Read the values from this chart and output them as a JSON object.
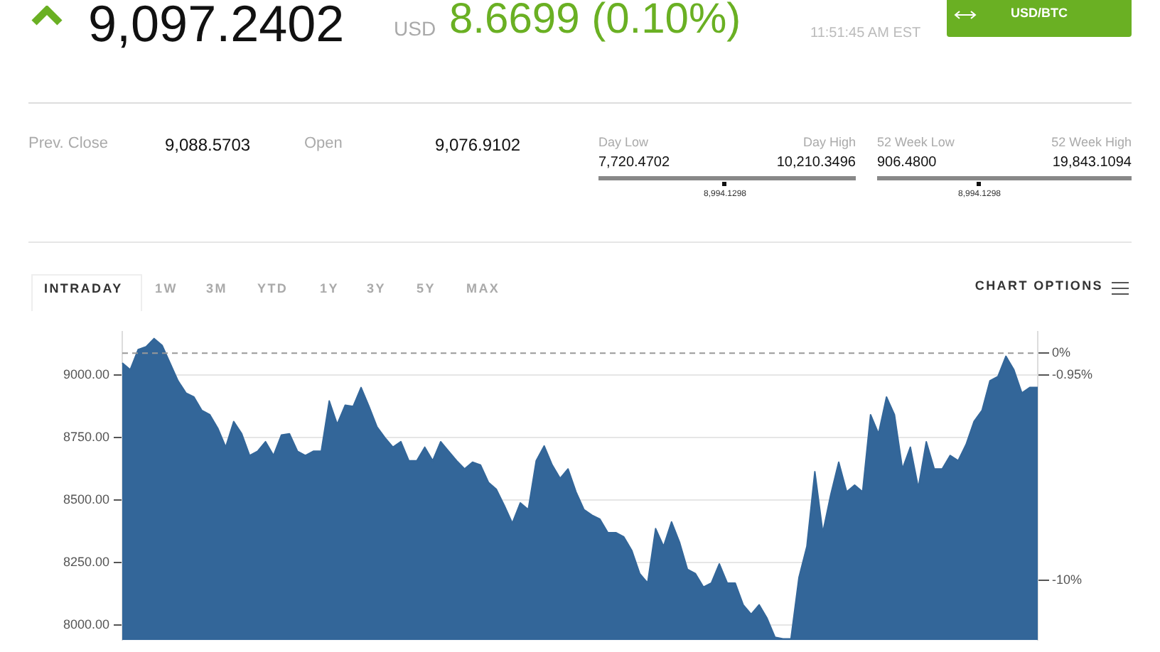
{
  "chart_data": {
    "type": "area",
    "categories": [
      null,
      null,
      null,
      null,
      null,
      null,
      null,
      null,
      null,
      null,
      null,
      null,
      null,
      null,
      null,
      null,
      null,
      null,
      null,
      null,
      null,
      null,
      null,
      null,
      null,
      null,
      null,
      null,
      null,
      null,
      null,
      null,
      null,
      null,
      null,
      null,
      null,
      null,
      null,
      null,
      null,
      null,
      null,
      null,
      null,
      null,
      null,
      null,
      null,
      null,
      null,
      null,
      null,
      null,
      null,
      null,
      null,
      null,
      null,
      null,
      null,
      null,
      null,
      null,
      null,
      null,
      null,
      null,
      null,
      null,
      null,
      null,
      null,
      null,
      null,
      null,
      null,
      null,
      null,
      null,
      null,
      null,
      null,
      null,
      null,
      null,
      null,
      null,
      null,
      null,
      null,
      null,
      null,
      null,
      null,
      null,
      null,
      null,
      null,
      null,
      null,
      null,
      null,
      null,
      null,
      null,
      null,
      null,
      null,
      null,
      null,
      null,
      null,
      null,
      null,
      null
    ],
    "series": [
      {
        "color": "#336699",
        "values": [
          9049,
          9022,
          9103,
          9114,
          9147,
          9120,
          9049,
          8978,
          8929,
          8913,
          8859,
          8842,
          8788,
          8712,
          8815,
          8766,
          8679,
          8696,
          8734,
          8679,
          8761,
          8766,
          8696,
          8679,
          8696,
          8696,
          8897,
          8804,
          8880,
          8875,
          8951,
          8875,
          8793,
          8750,
          8712,
          8734,
          8658,
          8658,
          8712,
          8658,
          8734,
          8696,
          8658,
          8625,
          8652,
          8641,
          8571,
          8543,
          8478,
          8408,
          8489,
          8462,
          8658,
          8717,
          8641,
          8587,
          8625,
          8533,
          8462,
          8440,
          8424,
          8370,
          8370,
          8353,
          8299,
          8206,
          8168,
          8386,
          8315,
          8413,
          8332,
          8223,
          8206,
          8152,
          8168,
          8245,
          8168,
          8168,
          8081,
          8043,
          8081,
          8027,
          7951,
          7945,
          7945,
          8190,
          8315,
          8614,
          8370,
          8522,
          8652,
          8533,
          8560,
          8533,
          8842,
          8766,
          8913,
          8842,
          8625,
          8712,
          8549,
          8734,
          8625,
          8625,
          8679,
          8658,
          8723,
          8815,
          8859,
          8978,
          8995,
          9076,
          9022,
          8929,
          8951,
          8951
        ]
      }
    ],
    "ylim": [
      7940,
      9175
    ],
    "yticks": [
      {
        "value": 8000,
        "label": "8000.00"
      },
      {
        "value": 8250,
        "label": "8250.00"
      },
      {
        "value": 8500,
        "label": "8500.00"
      },
      {
        "value": 8750,
        "label": "8750.00"
      },
      {
        "value": 9000,
        "label": "9000.00"
      }
    ],
    "y2lim": [
      -12.637,
      0.951
    ],
    "y2ticks": [
      {
        "value": -10,
        "label": "-10%"
      },
      {
        "value": -0.95,
        "label": "-0.95%"
      },
      {
        "value": 0,
        "label": "0%"
      }
    ],
    "tick_labels": "y",
    "grid": "y",
    "legend": false,
    "ref_lines": [
      {
        "axis": "y2",
        "value": 0,
        "label": null,
        "color": "#999999",
        "line_style": "dashed"
      }
    ],
    "annotations": [
      "9,097.2402",
      "USD",
      "8.6699 (0.10%)",
      "11:51:45 AM EST",
      "USD/BTC",
      "Prev. Close",
      "9,088.5703",
      "Open",
      "9,076.9102",
      "Day Low",
      "Day High",
      "7,720.4702",
      "10,210.3496",
      "8,994.1298",
      "52 Week Low",
      "52 Week High",
      "906.4800",
      "19,843.1094",
      "8,994.1298",
      "INTRADAY",
      "1W",
      "3M",
      "YTD",
      "1Y",
      "3Y",
      "5Y",
      "MAX",
      "CHART OPTIONS"
    ]
  }
}
